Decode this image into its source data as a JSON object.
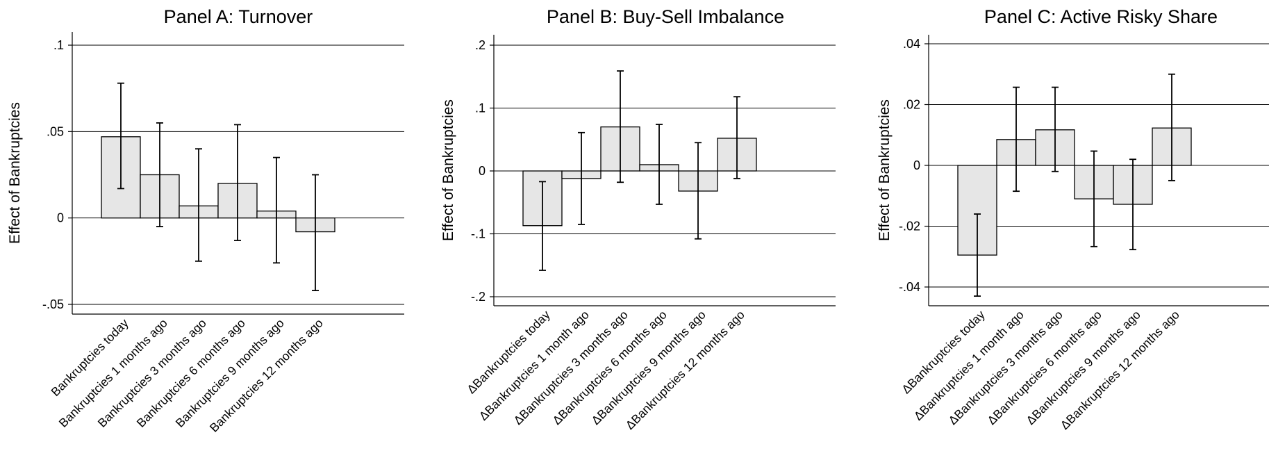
{
  "chart_data": [
    {
      "type": "bar",
      "title": "Panel A: Turnover",
      "ylabel": "Effect of Bankruptcies",
      "categories": [
        "Bankruptcies today",
        "Bankruptcies 1 months ago",
        "Bankruptcies 3 months ago",
        "Bankruptcies 6 months ago",
        "Bankruptcies 9 months ago",
        "Bankruptcies 12 months ago"
      ],
      "values": [
        0.047,
        0.025,
        0.007,
        0.02,
        0.004,
        -0.008
      ],
      "ci_low": [
        0.017,
        -0.005,
        -0.025,
        -0.013,
        -0.026,
        -0.042
      ],
      "ci_high": [
        0.078,
        0.055,
        0.04,
        0.054,
        0.035,
        0.025
      ],
      "yticks": [
        0.1,
        0.05,
        0,
        -0.05
      ],
      "ytick_labels": [
        ".1",
        ".05",
        "0",
        "-.05"
      ],
      "ylim": [
        -0.055,
        0.105
      ],
      "grid": true
    },
    {
      "type": "bar",
      "title": "Panel B: Buy-Sell Imbalance",
      "ylabel": "Effect of Bankruptcies",
      "categories": [
        "ΔBankruptcies today",
        "ΔBankruptcies 1 month ago",
        "ΔBankruptcies 3 months ago",
        "ΔBankruptcies 6 months ago",
        "ΔBankruptcies 9 months ago",
        "ΔBankruptcies 12 months ago"
      ],
      "values": [
        -0.087,
        -0.012,
        0.07,
        0.01,
        -0.032,
        0.052
      ],
      "ci_low": [
        -0.158,
        -0.085,
        -0.018,
        -0.053,
        -0.108,
        -0.012
      ],
      "ci_high": [
        -0.017,
        0.061,
        0.159,
        0.074,
        0.045,
        0.118
      ],
      "yticks": [
        0.2,
        0.1,
        0,
        -0.1,
        -0.2
      ],
      "ytick_labels": [
        ".2",
        ".1",
        "0",
        "-.1",
        "-.2"
      ],
      "ylim": [
        -0.215,
        0.21
      ],
      "grid": true
    },
    {
      "type": "bar",
      "title": "Panel C: Active Risky Share",
      "ylabel": "Effect of Bankruptcies",
      "categories": [
        "ΔBankruptcies today",
        "ΔBankruptcies 1 month ago",
        "ΔBankruptcies 3 months ago",
        "ΔBankruptcies 6 months ago",
        "ΔBankruptcies 9 months ago",
        "ΔBankruptcies 12 months ago"
      ],
      "values": [
        -0.0295,
        0.0085,
        0.0117,
        -0.011,
        -0.0128,
        0.0123
      ],
      "ci_low": [
        -0.043,
        -0.0085,
        -0.002,
        -0.0267,
        -0.0277,
        -0.005
      ],
      "ci_high": [
        -0.016,
        0.0257,
        0.0257,
        0.0047,
        0.002,
        0.03
      ],
      "yticks": [
        0.04,
        0.02,
        0,
        -0.02,
        -0.04
      ],
      "ytick_labels": [
        ".04",
        ".02",
        "0",
        "-.02",
        "-.04"
      ],
      "ylim": [
        -0.046,
        0.042
      ],
      "grid": true
    }
  ]
}
